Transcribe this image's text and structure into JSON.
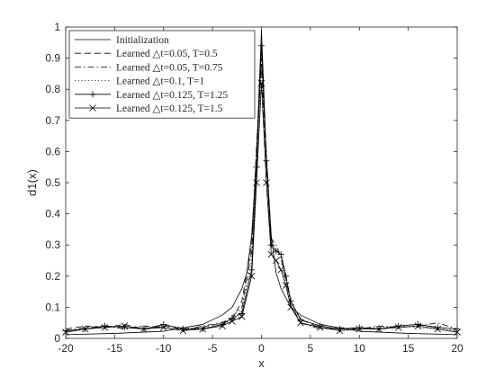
{
  "chart_data": {
    "type": "line",
    "title": "",
    "xlabel": "x",
    "ylabel": "d1(x)",
    "xlim": [
      -20,
      20
    ],
    "ylim": [
      0,
      1
    ],
    "grid": false,
    "legend_position": "top-left",
    "x_ticks": [
      "-20",
      "-15",
      "-10",
      "-5",
      "0",
      "5",
      "10",
      "15",
      "20"
    ],
    "y_ticks": [
      "0",
      "0.1",
      "0.2",
      "0.3",
      "0.4",
      "0.5",
      "0.6",
      "0.7",
      "0.8",
      "0.9",
      "1"
    ],
    "series": [
      {
        "name": "Initialization",
        "style": "solid",
        "marker": "none",
        "color": "#000000",
        "x": [
          -20,
          -15,
          -10,
          -6,
          -4,
          -3,
          -2,
          -1.5,
          -1,
          -0.5,
          -0.25,
          0,
          0.25,
          0.5,
          1,
          1.5,
          2,
          3,
          4,
          6,
          10,
          15,
          20
        ],
        "y": [
          0.012,
          0.016,
          0.023,
          0.045,
          0.075,
          0.1,
          0.16,
          0.21,
          0.33,
          0.58,
          0.79,
          0.99,
          0.79,
          0.58,
          0.33,
          0.21,
          0.16,
          0.1,
          0.075,
          0.045,
          0.023,
          0.016,
          0.012
        ]
      },
      {
        "name": "Learned △t=0.05, T=0.5",
        "style": "dashed",
        "marker": "none",
        "color": "#000000",
        "x": [
          -20,
          -18,
          -16,
          -14,
          -12,
          -10,
          -8,
          -6,
          -4,
          -3,
          -2,
          -1,
          -0.5,
          0,
          0.5,
          1,
          1.5,
          2,
          2.5,
          3,
          4,
          6,
          8,
          10,
          12,
          14,
          16,
          18,
          20
        ],
        "y": [
          0.03,
          0.04,
          0.035,
          0.045,
          0.03,
          0.04,
          0.03,
          0.035,
          0.05,
          0.06,
          0.12,
          0.3,
          0.6,
          0.88,
          0.55,
          0.3,
          0.28,
          0.27,
          0.2,
          0.12,
          0.06,
          0.035,
          0.03,
          0.035,
          0.03,
          0.04,
          0.045,
          0.035,
          0.03
        ]
      },
      {
        "name": "Learned △t=0.05, T=0.75",
        "style": "dashdot",
        "marker": "none",
        "color": "#000000",
        "x": [
          -20,
          -18,
          -16,
          -14,
          -12,
          -10,
          -8,
          -6,
          -4,
          -3,
          -2,
          -1,
          -0.5,
          0,
          0.5,
          1,
          1.5,
          2,
          2.5,
          3,
          4,
          6,
          8,
          10,
          12,
          14,
          16,
          18,
          20
        ],
        "y": [
          0.025,
          0.035,
          0.04,
          0.03,
          0.04,
          0.035,
          0.025,
          0.04,
          0.05,
          0.07,
          0.1,
          0.28,
          0.62,
          0.9,
          0.6,
          0.32,
          0.3,
          0.26,
          0.19,
          0.11,
          0.05,
          0.03,
          0.035,
          0.03,
          0.04,
          0.035,
          0.04,
          0.05,
          0.03
        ]
      },
      {
        "name": "Learned △t=0.1, T=1",
        "style": "dotted",
        "marker": "none",
        "color": "#000000",
        "x": [
          -20,
          -18,
          -16,
          -14,
          -12,
          -10,
          -8,
          -6,
          -4,
          -3,
          -2,
          -1,
          -0.5,
          0,
          0.5,
          1,
          1.5,
          2,
          2.5,
          3,
          4,
          6,
          8,
          10,
          12,
          14,
          16,
          18,
          20
        ],
        "y": [
          0.02,
          0.03,
          0.035,
          0.04,
          0.03,
          0.04,
          0.035,
          0.03,
          0.045,
          0.06,
          0.09,
          0.25,
          0.58,
          0.86,
          0.58,
          0.31,
          0.29,
          0.25,
          0.18,
          0.1,
          0.05,
          0.035,
          0.03,
          0.03,
          0.035,
          0.04,
          0.035,
          0.03,
          0.025
        ]
      },
      {
        "name": "Learned △t=0.125, T=1.25",
        "style": "solid",
        "marker": "plus",
        "color": "#000000",
        "x": [
          -20,
          -18,
          -16,
          -14,
          -12,
          -10,
          -8,
          -6,
          -4,
          -3,
          -2,
          -1,
          -0.5,
          0,
          0.5,
          1,
          1.5,
          2,
          2.5,
          3,
          4,
          6,
          8,
          10,
          12,
          14,
          16,
          18,
          20
        ],
        "y": [
          0.025,
          0.03,
          0.04,
          0.035,
          0.03,
          0.045,
          0.03,
          0.03,
          0.045,
          0.065,
          0.08,
          0.22,
          0.55,
          0.94,
          0.57,
          0.3,
          0.28,
          0.27,
          0.2,
          0.12,
          0.06,
          0.04,
          0.03,
          0.035,
          0.03,
          0.04,
          0.045,
          0.035,
          0.03
        ]
      },
      {
        "name": "Learned △t=0.125, T=1.5",
        "style": "solid",
        "marker": "x",
        "color": "#000000",
        "x": [
          -20,
          -18,
          -16,
          -14,
          -12,
          -10,
          -8,
          -6,
          -4,
          -3,
          -2,
          -1,
          -0.5,
          0,
          0.5,
          1,
          1.5,
          2,
          2.5,
          3,
          4,
          6,
          8,
          10,
          12,
          14,
          16,
          18,
          20
        ],
        "y": [
          0.02,
          0.03,
          0.035,
          0.04,
          0.03,
          0.035,
          0.025,
          0.03,
          0.04,
          0.055,
          0.07,
          0.2,
          0.5,
          0.82,
          0.5,
          0.27,
          0.25,
          0.22,
          0.17,
          0.1,
          0.05,
          0.035,
          0.025,
          0.03,
          0.03,
          0.035,
          0.04,
          0.03,
          0.02
        ]
      }
    ]
  }
}
